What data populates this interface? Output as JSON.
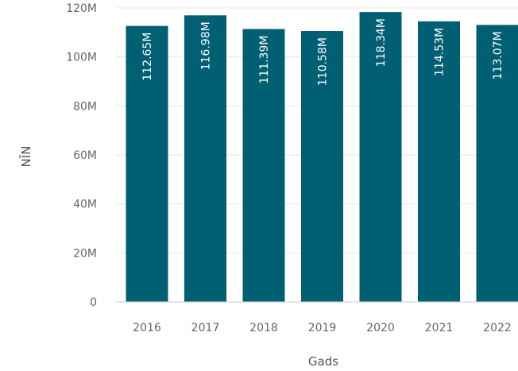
{
  "chart_data": {
    "type": "bar",
    "title": "",
    "xlabel": "Gads",
    "ylabel": "NĪN",
    "categories": [
      "2016",
      "2017",
      "2018",
      "2019",
      "2020",
      "2021",
      "2022"
    ],
    "values": [
      112.65,
      116.98,
      111.39,
      110.58,
      118.34,
      114.53,
      113.07
    ],
    "data_labels": [
      "112.65M",
      "116.98M",
      "111.39M",
      "110.58M",
      "118.34M",
      "114.53M",
      "113.07M"
    ],
    "y_ticks": [
      {
        "value": 0,
        "label": "0"
      },
      {
        "value": 20,
        "label": "20M"
      },
      {
        "value": 40,
        "label": "40M"
      },
      {
        "value": 60,
        "label": "60M"
      },
      {
        "value": 80,
        "label": "80M"
      },
      {
        "value": 100,
        "label": "100M"
      },
      {
        "value": 120,
        "label": "120M"
      }
    ],
    "ylim": [
      0,
      120
    ],
    "grid": true,
    "bar_color": "#005f73",
    "grid_color": "#e6e6e6",
    "axis_color": "#cccccc"
  }
}
